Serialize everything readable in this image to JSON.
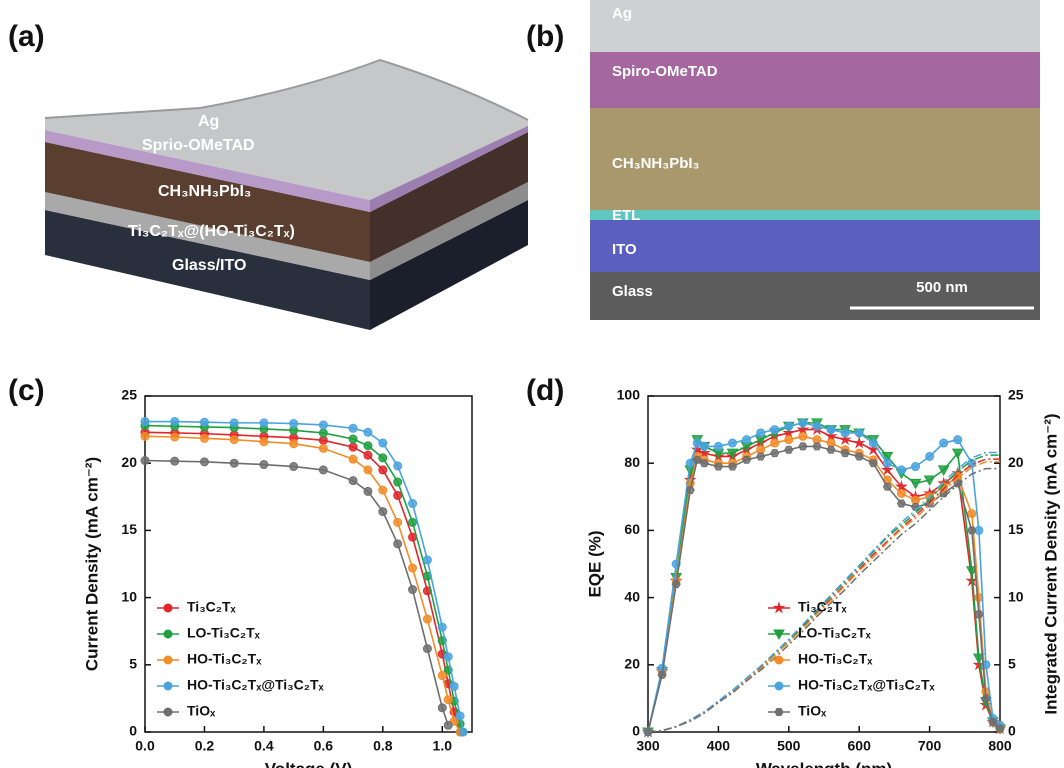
{
  "panel_labels": [
    "(a)",
    "(b)",
    "(c)",
    "(d)"
  ],
  "schematic": {
    "layers": [
      "Ag",
      "Sprio-OMeTAD",
      "CH₃NH₃PbI₃",
      "Ti₃C₂Tₓ@(HO-Ti₃C₂Tₓ)",
      "Glass/ITO"
    ]
  },
  "sem": {
    "layers": [
      "Ag",
      "Spiro-OMeTAD",
      "CH₃NH₃PbI₃",
      "ETL",
      "ITO",
      "Glass"
    ],
    "scale_bar": "500 nm"
  },
  "chart_data": [
    {
      "type": "line",
      "xlabel": "Voltage (V)",
      "ylabel": "Current Density (mA cm⁻²)",
      "x": [
        0,
        0.1,
        0.2,
        0.3,
        0.4,
        0.5,
        0.6,
        0.7,
        0.75,
        0.8,
        0.85,
        0.9,
        0.95,
        1.0,
        1.02,
        1.04,
        1.06,
        1.07
      ],
      "xlim": [
        0,
        1.1
      ],
      "xticks": [
        {
          "value": 0,
          "label": "0.0"
        },
        0.2,
        0.4,
        0.6,
        0.8,
        {
          "value": 1,
          "label": "1.0"
        }
      ],
      "ylim": [
        0,
        25
      ],
      "yticks": [
        0,
        5,
        10,
        15,
        20,
        25
      ],
      "legend": "lower left",
      "series": [
        {
          "name": "Ti₃C₂Tₓ",
          "color": "#e0262b",
          "marker": "circle",
          "values": [
            22.3,
            22.25,
            22.2,
            22.1,
            22.0,
            21.9,
            21.7,
            21.2,
            20.6,
            19.5,
            17.6,
            14.5,
            10.5,
            5.8,
            3.6,
            1.5,
            0,
            null
          ]
        },
        {
          "name": "LO-Ti₃C₂Tₓ",
          "color": "#1fa040",
          "marker": "circle",
          "values": [
            22.8,
            22.75,
            22.7,
            22.65,
            22.55,
            22.45,
            22.25,
            21.8,
            21.3,
            20.4,
            18.6,
            15.6,
            11.6,
            6.8,
            4.6,
            2.3,
            0.6,
            0
          ]
        },
        {
          "name": "HO-Ti₃C₂Tₓ",
          "color": "#f28c28",
          "marker": "circle",
          "values": [
            22.0,
            21.95,
            21.85,
            21.75,
            21.6,
            21.45,
            21.1,
            20.3,
            19.5,
            18.0,
            15.6,
            12.2,
            8.4,
            4.2,
            2.4,
            0.8,
            0,
            null
          ]
        },
        {
          "name": "HO-Ti₃C₂Tₓ@Ti₃C₂Tₓ",
          "color": "#4aa3df",
          "marker": "circle",
          "values": [
            23.1,
            23.1,
            23.05,
            23.0,
            23.0,
            22.95,
            22.85,
            22.6,
            22.3,
            21.5,
            19.8,
            17.0,
            12.8,
            7.8,
            5.6,
            3.4,
            1.2,
            0
          ]
        },
        {
          "name": "TiOₓ",
          "color": "#6e6e6e",
          "marker": "circle",
          "values": [
            20.2,
            20.15,
            20.1,
            20.0,
            19.9,
            19.75,
            19.5,
            18.7,
            17.9,
            16.4,
            14.0,
            10.6,
            6.2,
            1.8,
            0.5,
            null,
            null,
            null
          ]
        }
      ]
    },
    {
      "type": "line",
      "xlabel": "Wavelength (nm)",
      "ylabel": "EQE (%)",
      "y2label": "Integrated Current Density (mA cm⁻²)",
      "x": [
        300,
        320,
        340,
        360,
        370,
        380,
        400,
        420,
        440,
        460,
        480,
        500,
        520,
        540,
        560,
        580,
        600,
        620,
        640,
        660,
        680,
        700,
        720,
        740,
        760,
        770,
        780,
        790,
        800
      ],
      "xlim": [
        300,
        800
      ],
      "xticks": [
        300,
        400,
        500,
        600,
        700,
        800
      ],
      "ylim": [
        0,
        100
      ],
      "yticks": [
        0,
        20,
        40,
        60,
        80,
        100
      ],
      "y2lim": [
        0,
        25
      ],
      "y2ticks": [
        0,
        5,
        10,
        15,
        20,
        25
      ],
      "legend": "lower right",
      "series": [
        {
          "name": "Ti₃C₂Tₓ",
          "color": "#e0262b",
          "marker": "star",
          "values": [
            0,
            18,
            45,
            75,
            84,
            83,
            82,
            82,
            84,
            86,
            88,
            89,
            90,
            90,
            88,
            87,
            86,
            84,
            78,
            73,
            70,
            71,
            74,
            77,
            45,
            20,
            8,
            3,
            1
          ]
        },
        {
          "name": "LO-Ti₃C₂Tₓ",
          "color": "#1fa040",
          "marker": "triangle-down",
          "values": [
            0,
            18,
            46,
            78,
            87,
            85,
            83,
            83,
            85,
            87,
            89,
            91,
            92,
            92,
            90,
            90,
            89,
            87,
            82,
            77,
            74,
            75,
            78,
            83,
            48,
            22,
            9,
            3,
            1
          ]
        },
        {
          "name": "HO-Ti₃C₂Tₓ",
          "color": "#f28c28",
          "marker": "circle",
          "values": [
            0,
            18,
            45,
            74,
            82,
            81,
            80,
            80,
            82,
            84,
            86,
            87,
            88,
            87,
            86,
            84,
            83,
            81,
            75,
            71,
            69,
            70,
            73,
            76,
            65,
            40,
            12,
            3,
            1
          ]
        },
        {
          "name": "HO-Ti₃C₂Tₓ@Ti₃C₂Tₓ",
          "color": "#4aa3df",
          "marker": "circle",
          "values": [
            0,
            19,
            50,
            80,
            86,
            85,
            85,
            86,
            87,
            89,
            90,
            91,
            92,
            91,
            90,
            89,
            89,
            86,
            80,
            78,
            79,
            82,
            86,
            87,
            80,
            60,
            20,
            4,
            2
          ]
        },
        {
          "name": "TiOₓ",
          "color": "#6e6e6e",
          "marker": "hexagon",
          "values": [
            0,
            17,
            44,
            72,
            81,
            80,
            79,
            79,
            81,
            82,
            83,
            84,
            85,
            85,
            84,
            83,
            82,
            80,
            73,
            68,
            67,
            68,
            71,
            74,
            60,
            35,
            10,
            3,
            1
          ]
        },
        {
          "color": "#e0262b",
          "axis": "y2",
          "dash": "dash-dot",
          "values": [
            0,
            0.1,
            0.4,
            0.9,
            1.2,
            1.5,
            2.2,
            3.0,
            3.9,
            4.8,
            5.8,
            6.7,
            7.8,
            8.9,
            9.9,
            11.0,
            12.1,
            13.2,
            14.2,
            15.2,
            16.1,
            17.1,
            18.1,
            19.1,
            19.9,
            20.1,
            20.3,
            20.3,
            20.3
          ]
        },
        {
          "color": "#1fa040",
          "axis": "y2",
          "dash": "dash-dot",
          "values": [
            0,
            0.1,
            0.4,
            0.9,
            1.2,
            1.5,
            2.3,
            3.1,
            4.0,
            4.9,
            5.8,
            6.8,
            7.9,
            9.0,
            10.1,
            11.2,
            12.3,
            13.4,
            14.5,
            15.4,
            16.3,
            17.3,
            18.4,
            19.4,
            20.2,
            20.4,
            20.6,
            20.6,
            20.6
          ]
        },
        {
          "color": "#f28c28",
          "axis": "y2",
          "dash": "dash-dot",
          "values": [
            0,
            0.1,
            0.4,
            0.9,
            1.2,
            1.4,
            2.2,
            3.0,
            3.9,
            4.7,
            5.7,
            6.7,
            7.7,
            8.8,
            9.8,
            10.9,
            12.0,
            13.0,
            14.1,
            15.1,
            15.9,
            16.9,
            17.9,
            18.9,
            19.7,
            19.9,
            20.1,
            20.1,
            20.1
          ]
        },
        {
          "color": "#4aa3df",
          "axis": "y2",
          "dash": "dash-dot",
          "values": [
            0,
            0.1,
            0.4,
            0.9,
            1.2,
            1.5,
            2.3,
            3.1,
            4.0,
            4.9,
            5.9,
            6.9,
            8.0,
            9.1,
            10.2,
            11.3,
            12.4,
            13.5,
            14.6,
            15.6,
            16.5,
            17.5,
            18.6,
            19.6,
            20.4,
            20.6,
            20.8,
            20.8,
            20.8
          ]
        },
        {
          "color": "#6e6e6e",
          "axis": "y2",
          "dash": "dash-dot",
          "values": [
            0,
            0.1,
            0.4,
            0.8,
            1.1,
            1.4,
            2.2,
            2.9,
            3.8,
            4.6,
            5.5,
            6.5,
            7.5,
            8.6,
            9.6,
            10.6,
            11.7,
            12.7,
            13.7,
            14.7,
            15.5,
            16.5,
            17.5,
            18.4,
            19.2,
            19.4,
            19.6,
            19.6,
            19.6
          ]
        }
      ]
    }
  ]
}
